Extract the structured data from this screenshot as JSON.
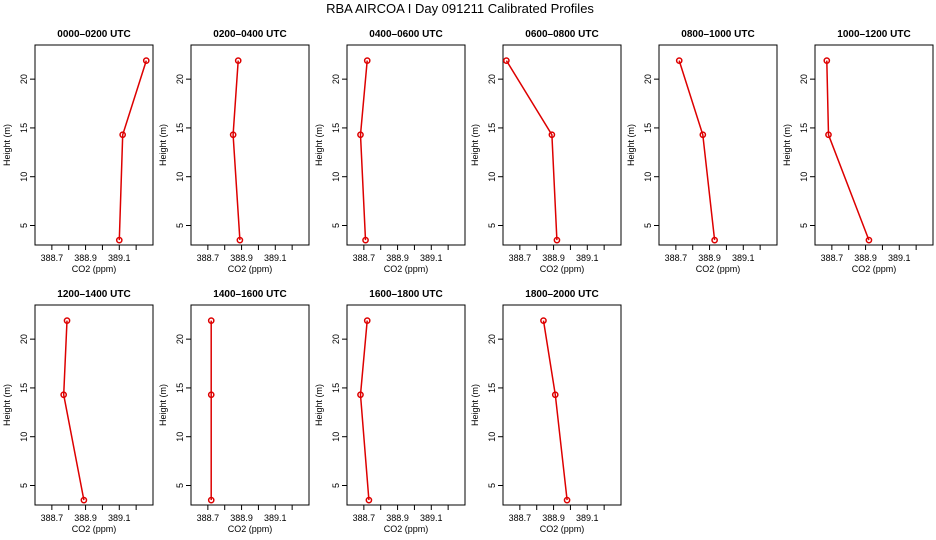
{
  "figure_title": "RBA AIRCOA I  Day 091211  Calibrated Profiles",
  "colors": {
    "series": "#dd0000",
    "axes": "#000000",
    "background": "#ffffff"
  },
  "chart_data": [
    {
      "type": "line",
      "title": "0000–0200 UTC",
      "xlabel": "CO2 (ppm)",
      "ylabel": "Height (m)",
      "xlim": [
        388.6,
        389.3
      ],
      "ylim": [
        3,
        23.5
      ],
      "xticks": [
        388.7,
        388.9,
        389.1
      ],
      "xtick_labels": [
        "388.7",
        "388.9",
        "389.1"
      ],
      "yticks": [
        5,
        10,
        15,
        20
      ],
      "ytick_labels": [
        "5",
        "10",
        "15",
        "20"
      ],
      "series": [
        {
          "x": [
            389.1,
            389.12,
            389.26
          ],
          "y": [
            3.5,
            14.3,
            21.9
          ]
        }
      ]
    },
    {
      "type": "line",
      "title": "0200–0400 UTC",
      "xlabel": "CO2 (ppm)",
      "ylabel": "Height (m)",
      "xlim": [
        388.6,
        389.3
      ],
      "ylim": [
        3,
        23.5
      ],
      "xticks": [
        388.7,
        388.9,
        389.1
      ],
      "xtick_labels": [
        "388.7",
        "388.9",
        "389.1"
      ],
      "yticks": [
        5,
        10,
        15,
        20
      ],
      "ytick_labels": [
        "5",
        "10",
        "15",
        "20"
      ],
      "series": [
        {
          "x": [
            388.89,
            388.85,
            388.88
          ],
          "y": [
            3.5,
            14.3,
            21.9
          ]
        }
      ]
    },
    {
      "type": "line",
      "title": "0400–0600 UTC",
      "xlabel": "CO2 (ppm)",
      "ylabel": "Height (m)",
      "xlim": [
        388.6,
        389.3
      ],
      "ylim": [
        3,
        23.5
      ],
      "xticks": [
        388.7,
        388.9,
        389.1
      ],
      "xtick_labels": [
        "388.7",
        "388.9",
        "389.1"
      ],
      "yticks": [
        5,
        10,
        15,
        20
      ],
      "ytick_labels": [
        "5",
        "10",
        "15",
        "20"
      ],
      "series": [
        {
          "x": [
            388.71,
            388.68,
            388.72
          ],
          "y": [
            3.5,
            14.3,
            21.9
          ]
        }
      ]
    },
    {
      "type": "line",
      "title": "0600–0800 UTC",
      "xlabel": "CO2 (ppm)",
      "ylabel": "Height (m)",
      "xlim": [
        388.6,
        389.3
      ],
      "ylim": [
        3,
        23.5
      ],
      "xticks": [
        388.7,
        388.9,
        389.1
      ],
      "xtick_labels": [
        "388.7",
        "388.9",
        "389.1"
      ],
      "yticks": [
        5,
        10,
        15,
        20
      ],
      "ytick_labels": [
        "5",
        "10",
        "15",
        "20"
      ],
      "series": [
        {
          "x": [
            388.92,
            388.89,
            388.62
          ],
          "y": [
            3.5,
            14.3,
            21.9
          ]
        }
      ]
    },
    {
      "type": "line",
      "title": "0800–1000 UTC",
      "xlabel": "CO2 (ppm)",
      "ylabel": "Height (m)",
      "xlim": [
        388.6,
        389.3
      ],
      "ylim": [
        3,
        23.5
      ],
      "xticks": [
        388.7,
        388.9,
        389.1
      ],
      "xtick_labels": [
        "388.7",
        "388.9",
        "389.1"
      ],
      "yticks": [
        5,
        10,
        15,
        20
      ],
      "ytick_labels": [
        "5",
        "10",
        "15",
        "20"
      ],
      "series": [
        {
          "x": [
            388.93,
            388.86,
            388.72
          ],
          "y": [
            3.5,
            14.3,
            21.9
          ]
        }
      ]
    },
    {
      "type": "line",
      "title": "1000–1200 UTC",
      "xlabel": "CO2 (ppm)",
      "ylabel": "Height (m)",
      "xlim": [
        388.6,
        389.3
      ],
      "ylim": [
        3,
        23.5
      ],
      "xticks": [
        388.7,
        388.9,
        389.1
      ],
      "xtick_labels": [
        "388.7",
        "388.9",
        "389.1"
      ],
      "yticks": [
        5,
        10,
        15,
        20
      ],
      "ytick_labels": [
        "5",
        "10",
        "15",
        "20"
      ],
      "series": [
        {
          "x": [
            388.92,
            388.68,
            388.67
          ],
          "y": [
            3.5,
            14.3,
            21.9
          ]
        }
      ]
    },
    {
      "type": "line",
      "title": "1200–1400 UTC",
      "xlabel": "CO2 (ppm)",
      "ylabel": "Height (m)",
      "xlim": [
        388.6,
        389.3
      ],
      "ylim": [
        3,
        23.5
      ],
      "xticks": [
        388.7,
        388.9,
        389.1
      ],
      "xtick_labels": [
        "388.7",
        "388.9",
        "389.1"
      ],
      "yticks": [
        5,
        10,
        15,
        20
      ],
      "ytick_labels": [
        "5",
        "10",
        "15",
        "20"
      ],
      "series": [
        {
          "x": [
            388.89,
            388.77,
            388.79
          ],
          "y": [
            3.5,
            14.3,
            21.9
          ]
        }
      ]
    },
    {
      "type": "line",
      "title": "1400–1600 UTC",
      "xlabel": "CO2 (ppm)",
      "ylabel": "Height (m)",
      "xlim": [
        388.6,
        389.3
      ],
      "ylim": [
        3,
        23.5
      ],
      "xticks": [
        388.7,
        388.9,
        389.1
      ],
      "xtick_labels": [
        "388.7",
        "388.9",
        "389.1"
      ],
      "yticks": [
        5,
        10,
        15,
        20
      ],
      "ytick_labels": [
        "5",
        "10",
        "15",
        "20"
      ],
      "series": [
        {
          "x": [
            388.72,
            388.72,
            388.72
          ],
          "y": [
            3.5,
            14.3,
            21.9
          ]
        }
      ]
    },
    {
      "type": "line",
      "title": "1600–1800 UTC",
      "xlabel": "CO2 (ppm)",
      "ylabel": "Height (m)",
      "xlim": [
        388.6,
        389.3
      ],
      "ylim": [
        3,
        23.5
      ],
      "xticks": [
        388.7,
        388.9,
        389.1
      ],
      "xtick_labels": [
        "388.7",
        "388.9",
        "389.1"
      ],
      "yticks": [
        5,
        10,
        15,
        20
      ],
      "ytick_labels": [
        "5",
        "10",
        "15",
        "20"
      ],
      "series": [
        {
          "x": [
            388.73,
            388.68,
            388.72
          ],
          "y": [
            3.5,
            14.3,
            21.9
          ]
        }
      ]
    },
    {
      "type": "line",
      "title": "1800–2000 UTC",
      "xlabel": "CO2 (ppm)",
      "ylabel": "Height (m)",
      "xlim": [
        388.6,
        389.3
      ],
      "ylim": [
        3,
        23.5
      ],
      "xticks": [
        388.7,
        388.9,
        389.1
      ],
      "xtick_labels": [
        "388.7",
        "388.9",
        "389.1"
      ],
      "yticks": [
        5,
        10,
        15,
        20
      ],
      "ytick_labels": [
        "5",
        "10",
        "15",
        "20"
      ],
      "series": [
        {
          "x": [
            388.98,
            388.91,
            388.84
          ],
          "y": [
            3.5,
            14.3,
            21.9
          ]
        }
      ]
    }
  ]
}
